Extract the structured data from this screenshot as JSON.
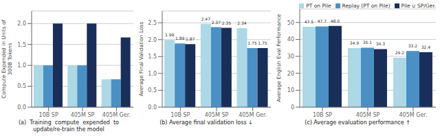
{
  "chart_data": [
    {
      "type": "bar",
      "title": "(a)  Training  compute  expended  to\nupdate/re-train the model",
      "ylabel": "Compute Expended in Units of\n300B Tokens",
      "categories": [
        "10B SP",
        "405M SP",
        "405M Ger."
      ],
      "series": [
        {
          "name": "PT on Pile",
          "color": "#add8e6",
          "values": [
            1.0,
            1.0,
            0.667
          ]
        },
        {
          "name": "Replay (PT on Pile)",
          "color": "#4a90c4",
          "values": [
            1.0,
            1.0,
            0.667
          ]
        },
        {
          "name": "Pile ∪ SP/Ger.",
          "color": "#1a2e5a",
          "values": [
            2.0,
            2.0,
            1.667
          ]
        }
      ],
      "ylim": [
        0,
        2.3
      ],
      "yticks": [
        {
          "value": 0,
          "label": "0.0"
        },
        0.5,
        {
          "value": 1,
          "label": "1.0"
        },
        1.5,
        {
          "value": 2,
          "label": "2.0"
        }
      ],
      "grid": true,
      "data_labels": false
    },
    {
      "type": "bar",
      "title": "(b) Average final validation loss ↓",
      "ylabel": "Average Final Validation Loss",
      "categories": [
        "10B SP",
        "405M SP",
        "405M Ger."
      ],
      "series": [
        {
          "name": "PT on Pile",
          "color": "#add8e6",
          "values": [
            1.99,
            2.47,
            2.34
          ]
        },
        {
          "name": "Replay (PT on Pile)",
          "color": "#4a90c4",
          "values": [
            1.89,
            2.37,
            1.75
          ]
        },
        {
          "name": "Pile ∪ SP/Ger.",
          "color": "#1a2e5a",
          "values": [
            1.87,
            2.35,
            1.75
          ]
        }
      ],
      "ylim": [
        0,
        2.85
      ],
      "yticks": [
        {
          "value": 0,
          "label": "0.0"
        },
        0.5,
        {
          "value": 1,
          "label": "1.0"
        },
        1.5,
        {
          "value": 2,
          "label": "2.0"
        },
        2.5
      ],
      "grid": true,
      "data_labels": true
    },
    {
      "type": "bar",
      "title": "(c) Average evaluation performance ↑",
      "ylabel": "Average English Eval Performance",
      "categories": [
        "10B SP",
        "405M SP",
        "405M Ger."
      ],
      "series": [
        {
          "name": "PT on Pile",
          "color": "#add8e6",
          "values": [
            47.5,
            34.9,
            29.2
          ]
        },
        {
          "name": "Replay (PT on Pile)",
          "color": "#4a90c4",
          "values": [
            47.7,
            35.1,
            33.2
          ]
        },
        {
          "name": "Pile ∪ SP/Ger.",
          "color": "#1a2e5a",
          "values": [
            48.0,
            34.3,
            32.4
          ],
          "value_labels": [
            "48.0",
            "34.3",
            "32.4"
          ]
        }
      ],
      "ylim": [
        0,
        58
      ],
      "yticks": [
        0,
        10,
        20,
        30,
        40,
        50
      ],
      "grid": true,
      "data_labels": true,
      "legend": "upper right"
    }
  ]
}
